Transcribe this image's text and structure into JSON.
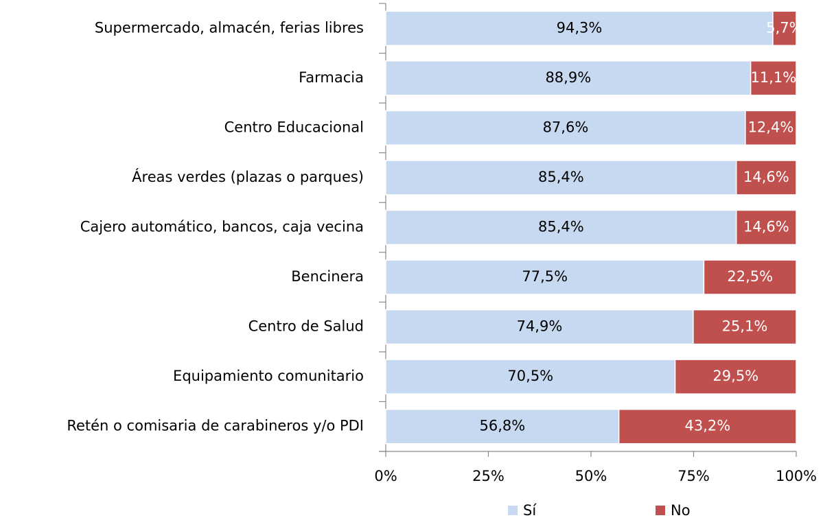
{
  "chart_data": {
    "type": "stacked_bar_horizontal",
    "categories": [
      "Supermercado, almacén, ferias libres",
      "Farmacia",
      "Centro Educacional",
      "Áreas verdes (plazas o parques)",
      "Cajero automático, bancos, caja vecina",
      "Bencinera",
      "Centro de Salud",
      "Equipamiento comunitario",
      "Retén o comisaria de carabineros y/o PDI"
    ],
    "series": [
      {
        "name": "Sí",
        "color": "#c6d9f1",
        "values": [
          94.3,
          88.9,
          87.6,
          85.4,
          85.4,
          77.5,
          74.9,
          70.5,
          56.8
        ],
        "value_labels": [
          "94,3%",
          "88,9%",
          "87,6%",
          "85,4%",
          "85,4%",
          "77,5%",
          "74,9%",
          "70,5%",
          "56,8%"
        ]
      },
      {
        "name": "No",
        "color": "#c0504d",
        "values": [
          5.7,
          11.1,
          12.4,
          14.6,
          14.6,
          22.5,
          25.1,
          29.5,
          43.2
        ],
        "value_labels": [
          "5,7%",
          "11,1%",
          "12,4%",
          "14,6%",
          "14,6%",
          "22,5%",
          "25,1%",
          "29,5%",
          "43,2%"
        ]
      }
    ],
    "xlim": [
      0,
      100
    ],
    "xticks": [
      {
        "value": 0,
        "label": "0%"
      },
      {
        "value": 25,
        "label": "25%"
      },
      {
        "value": 50,
        "label": "50%"
      },
      {
        "value": 75,
        "label": "75%"
      },
      {
        "value": 100,
        "label": "100%"
      }
    ],
    "legend": "bottom"
  }
}
